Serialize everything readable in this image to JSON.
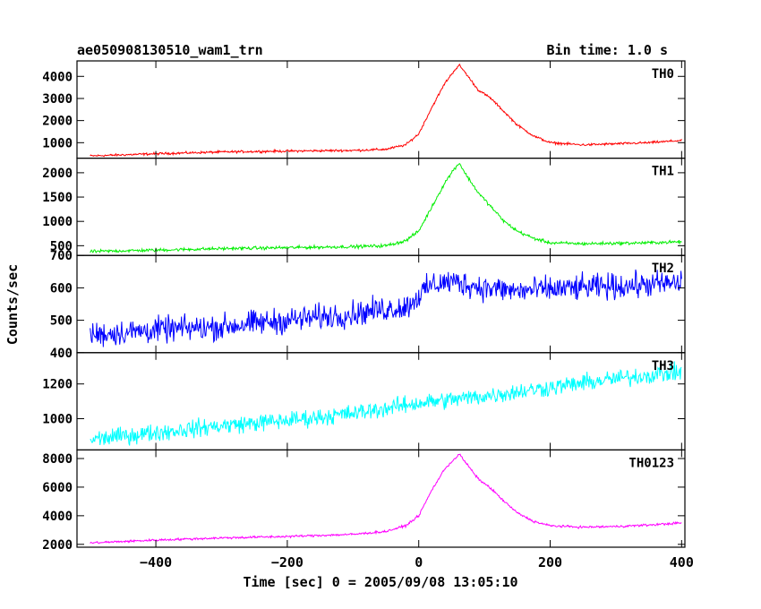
{
  "header": {
    "title": "ae050908130510_wam1_trn",
    "bin_time": "Bin time: 1.0 s"
  },
  "chart_data": {
    "type": "line",
    "xlabel": "Time [sec] 0 = 2005/09/08 13:05:10",
    "ylabel": "Counts/sec",
    "xlim": [
      -520,
      405
    ],
    "x_ticks": [
      -400,
      -200,
      0,
      200,
      400
    ],
    "x_tick_labels": [
      "−400",
      "−200",
      "0",
      "200",
      "400"
    ],
    "x_range": [
      -500,
      400
    ],
    "panels": [
      {
        "name": "TH0",
        "color": "#ff0000",
        "ylim": [
          300,
          4700
        ],
        "y_ticks": [
          1000,
          2000,
          3000,
          4000
        ],
        "y_tick_labels": [
          "1000",
          "2000",
          "3000",
          "4000"
        ],
        "x": [
          -500,
          -400,
          -300,
          -200,
          -100,
          -50,
          -20,
          0,
          20,
          40,
          55,
          62,
          70,
          90,
          110,
          130,
          150,
          175,
          200,
          250,
          300,
          350,
          400
        ],
        "y": [
          400,
          500,
          580,
          620,
          650,
          700,
          900,
          1400,
          2600,
          3700,
          4300,
          4500,
          4200,
          3400,
          3000,
          2400,
          1800,
          1300,
          1000,
          900,
          950,
          1000,
          1100
        ],
        "noise": 40
      },
      {
        "name": "TH1",
        "color": "#00ee00",
        "ylim": [
          300,
          2300
        ],
        "y_ticks": [
          500,
          1000,
          1500,
          2000
        ],
        "y_tick_labels": [
          "500",
          "1000",
          "1500",
          "2000"
        ],
        "x": [
          -500,
          -400,
          -300,
          -200,
          -100,
          -50,
          -20,
          0,
          20,
          40,
          55,
          62,
          70,
          90,
          110,
          130,
          150,
          175,
          200,
          250,
          300,
          350,
          400
        ],
        "y": [
          380,
          410,
          440,
          460,
          480,
          500,
          600,
          800,
          1300,
          1800,
          2100,
          2200,
          2000,
          1600,
          1300,
          1000,
          800,
          650,
          560,
          540,
          550,
          560,
          580
        ],
        "noise": 25
      },
      {
        "name": "TH2",
        "color": "#0000ff",
        "ylim": [
          400,
          700
        ],
        "y_ticks": [
          400,
          500,
          600,
          700
        ],
        "y_tick_labels": [
          "400",
          "500",
          "600",
          "700"
        ],
        "x": [
          -500,
          -400,
          -300,
          -200,
          -100,
          -50,
          -20,
          0,
          20,
          50,
          100,
          150,
          200,
          300,
          400
        ],
        "y": [
          455,
          470,
          480,
          500,
          520,
          535,
          540,
          575,
          610,
          620,
          600,
          590,
          595,
          605,
          615
        ],
        "noise": 30
      },
      {
        "name": "TH3",
        "color": "#00ffff",
        "ylim": [
          820,
          1380
        ],
        "y_ticks": [
          1000,
          1200
        ],
        "y_tick_labels": [
          "1000",
          "1200"
        ],
        "x": [
          -500,
          -400,
          -300,
          -200,
          -100,
          0,
          100,
          200,
          300,
          400
        ],
        "y": [
          880,
          920,
          960,
          990,
          1030,
          1090,
          1130,
          1180,
          1230,
          1270
        ],
        "noise": 38
      },
      {
        "name": "TH0123",
        "color": "#ff00ff",
        "ylim": [
          1800,
          8600
        ],
        "y_ticks": [
          2000,
          4000,
          6000,
          8000
        ],
        "y_tick_labels": [
          "2000",
          "4000",
          "6000",
          "8000"
        ],
        "x": [
          -500,
          -400,
          -300,
          -200,
          -100,
          -50,
          -20,
          0,
          20,
          40,
          55,
          62,
          70,
          90,
          110,
          130,
          150,
          175,
          200,
          250,
          300,
          350,
          400
        ],
        "y": [
          2100,
          2300,
          2450,
          2550,
          2700,
          2900,
          3300,
          4000,
          5800,
          7300,
          8000,
          8300,
          7800,
          6600,
          5900,
          5000,
          4200,
          3600,
          3300,
          3200,
          3250,
          3350,
          3500
        ],
        "noise": 60
      }
    ]
  }
}
